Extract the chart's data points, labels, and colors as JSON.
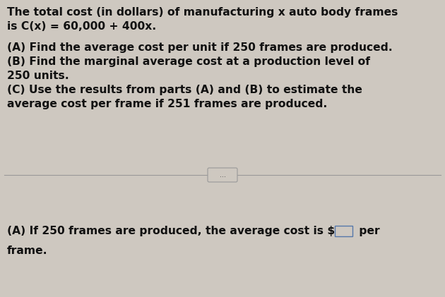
{
  "background_color": "#cec8c0",
  "text_color": "#111111",
  "fig_width": 6.3,
  "fig_height": 4.21,
  "dpi": 100,
  "line1": "The total cost (in dollars) of manufacturing x auto body frames",
  "line2": "is C(x) = 60,000 + 400x.",
  "line3": "(A) Find the average cost per unit if 250 frames are produced.",
  "line4": "(B) Find the marginal average cost at a production level of",
  "line5": "250 units.",
  "line6": "(C) Use the results from parts (A) and (B) to estimate the",
  "line7": "average cost per frame if 251 frames are produced.",
  "bottom1": "(A) If 250 frames are produced, the average cost is $",
  "bottom2": " per",
  "bottom3": "frame.",
  "font_size": 11.2,
  "font_weight": "bold",
  "divider_color": "#999999",
  "divider_linewidth": 0.8,
  "dots_text": "...",
  "dots_fontsize": 7,
  "box_edge_color": "#5577aa",
  "box_face_color": "#cec8c0"
}
